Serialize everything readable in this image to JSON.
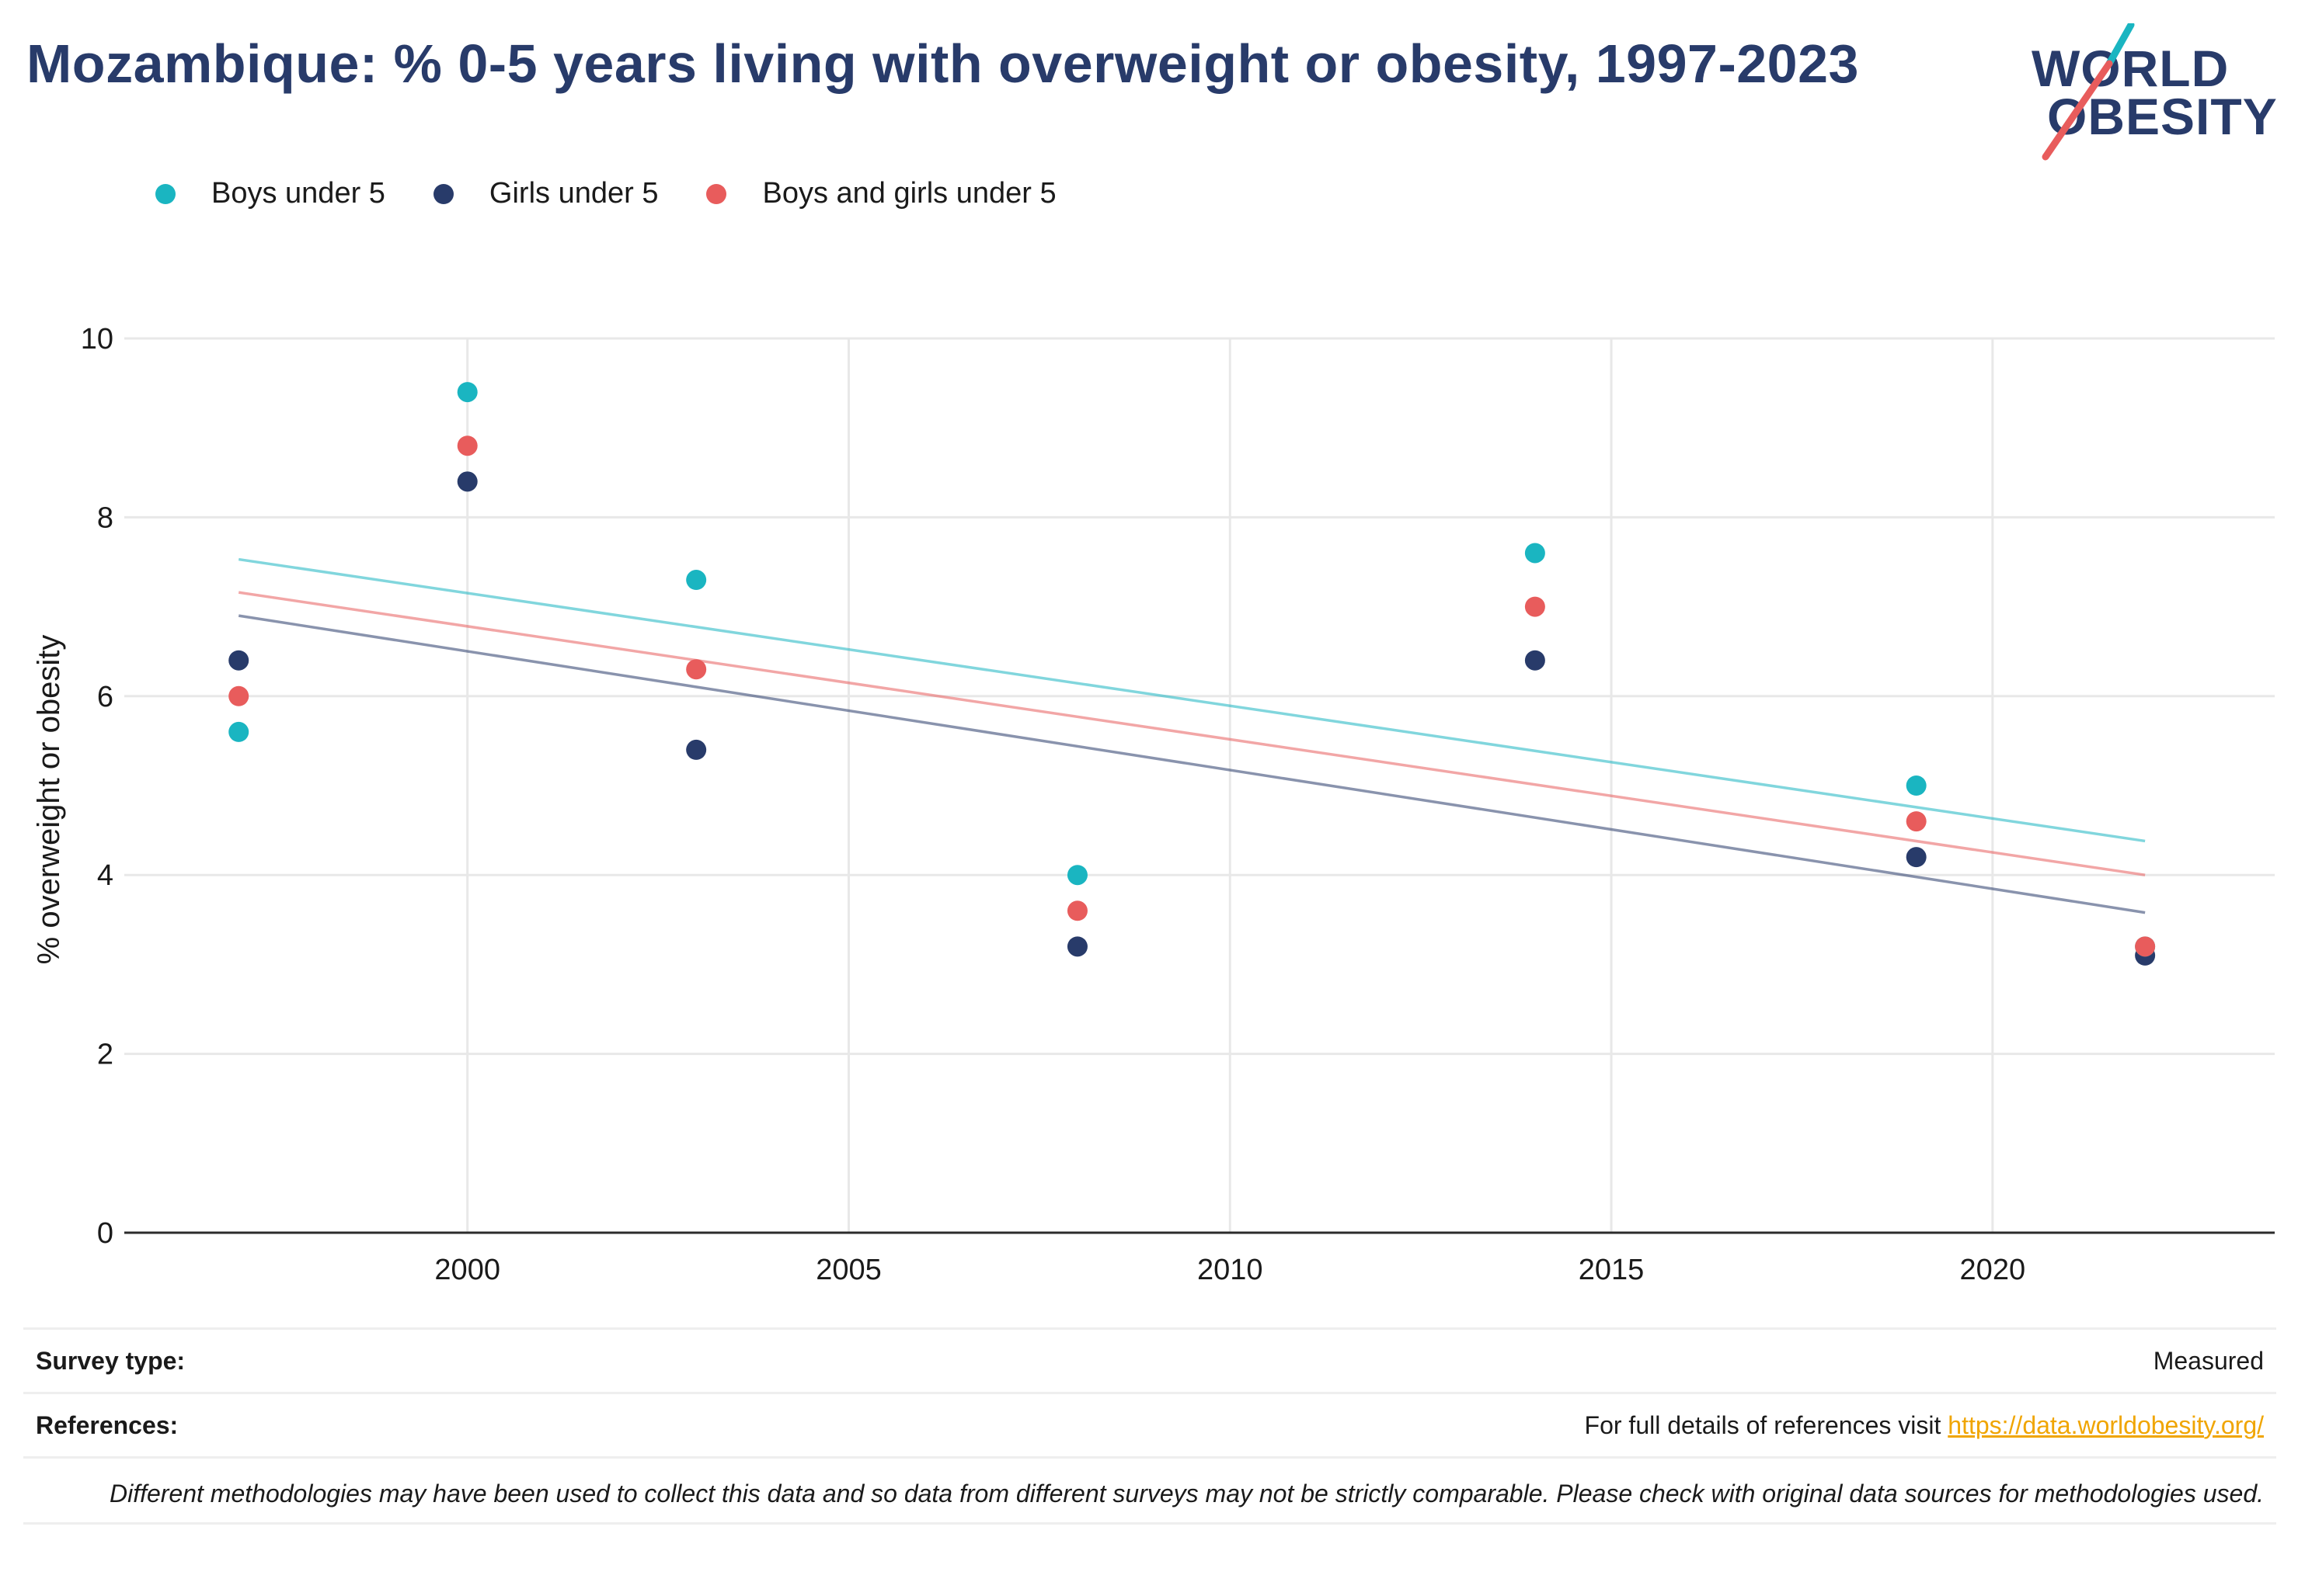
{
  "header": {
    "title": "Mozambique: % 0-5 years living with overweight or obesity, 1997-2023",
    "logo_line1": "WORLD",
    "logo_line2": "OBESITY"
  },
  "colors": {
    "boys": "#1ab5c1",
    "girls": "#283b6a",
    "both": "#e85c5c",
    "title": "#283b6a",
    "link": "#f0a500"
  },
  "chart_data": {
    "type": "scatter",
    "title": "Mozambique: % 0-5 years living with overweight or obesity, 1997-2023",
    "xlabel": "",
    "ylabel": "% overweight or obesity",
    "xlim": [
      1995.5,
      2023.7
    ],
    "ylim": [
      0,
      10
    ],
    "xticks": [
      2000,
      2005,
      2010,
      2015,
      2020
    ],
    "yticks": [
      0,
      2,
      4,
      6,
      8,
      10
    ],
    "grid": true,
    "legend_position": "top-left",
    "series": [
      {
        "name": "Boys under 5",
        "x": [
          1997,
          2000,
          2003,
          2008,
          2014,
          2019,
          2022
        ],
        "y": [
          5.6,
          9.4,
          7.3,
          4.0,
          7.6,
          5.0,
          3.2
        ],
        "trend": [
          [
            1997,
            7.53
          ],
          [
            2022,
            4.38
          ]
        ]
      },
      {
        "name": "Girls under 5",
        "x": [
          1997,
          2000,
          2003,
          2008,
          2014,
          2019,
          2022
        ],
        "y": [
          6.4,
          8.4,
          5.4,
          3.2,
          6.4,
          4.2,
          3.1
        ],
        "trend": [
          [
            1997,
            6.9
          ],
          [
            2022,
            3.58
          ]
        ]
      },
      {
        "name": "Boys and girls under 5",
        "x": [
          1997,
          2000,
          2003,
          2008,
          2014,
          2019,
          2022
        ],
        "y": [
          6.0,
          8.8,
          6.3,
          3.6,
          7.0,
          4.6,
          3.2
        ],
        "trend": [
          [
            1997,
            7.16
          ],
          [
            2022,
            4.0
          ]
        ]
      }
    ]
  },
  "footer": {
    "survey_label": "Survey type:",
    "survey_value": "Measured",
    "references_label": "References:",
    "references_text": "For full details of references visit ",
    "references_link": "https://data.worldobesity.org/",
    "note": "Different methodologies may have been used to collect this data and so data from different surveys may not be strictly comparable. Please check with original data sources for methodologies used."
  }
}
